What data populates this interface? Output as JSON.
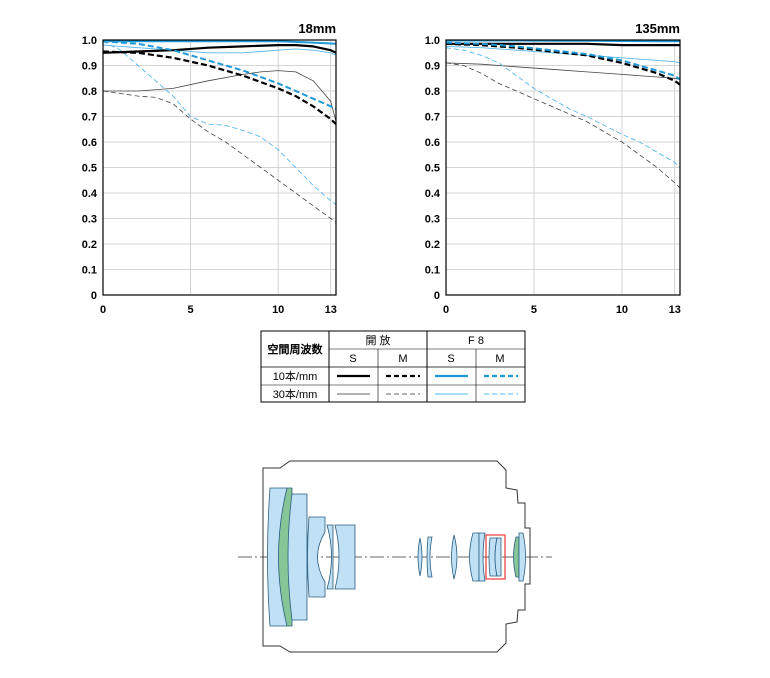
{
  "chart_data": [
    {
      "type": "line",
      "title": "18mm",
      "xlim": [
        0,
        13.3
      ],
      "ylim": [
        0,
        1.0
      ],
      "xticks": [
        "0",
        "5",
        "10",
        "13"
      ],
      "yticks": [
        "0",
        "0.1",
        "0.2",
        "0.3",
        "0.4",
        "0.5",
        "0.6",
        "0.7",
        "0.8",
        "0.9",
        "1.0"
      ],
      "grid": true,
      "series": [
        {
          "name": "開放 S 10本/mm",
          "x": [
            0,
            2,
            4,
            6,
            8,
            10,
            11,
            12,
            13,
            13.3
          ],
          "y": [
            0.95,
            0.955,
            0.96,
            0.97,
            0.975,
            0.98,
            0.98,
            0.975,
            0.96,
            0.95
          ]
        },
        {
          "name": "開放 M 10本/mm",
          "x": [
            0,
            2,
            4,
            6,
            8,
            10,
            11,
            12,
            13,
            13.3
          ],
          "y": [
            0.955,
            0.95,
            0.93,
            0.9,
            0.86,
            0.81,
            0.78,
            0.74,
            0.69,
            0.67
          ]
        },
        {
          "name": "F8 S 10本/mm",
          "x": [
            0,
            2,
            4,
            6,
            8,
            10,
            12,
            13.3
          ],
          "y": [
            0.995,
            0.995,
            0.995,
            0.995,
            0.995,
            0.995,
            0.99,
            0.985
          ]
        },
        {
          "name": "F8 M 10本/mm",
          "x": [
            0,
            2,
            4,
            6,
            8,
            10,
            11,
            12,
            13,
            13.3
          ],
          "y": [
            0.995,
            0.985,
            0.96,
            0.92,
            0.88,
            0.83,
            0.8,
            0.77,
            0.74,
            0.73
          ]
        },
        {
          "name": "開放 S 30本/mm",
          "x": [
            0,
            2,
            4,
            6,
            8,
            9,
            10,
            11,
            12,
            13,
            13.3
          ],
          "y": [
            0.8,
            0.8,
            0.81,
            0.84,
            0.865,
            0.875,
            0.88,
            0.875,
            0.84,
            0.76,
            0.68
          ]
        },
        {
          "name": "開放 M 30本/mm",
          "x": [
            0,
            1,
            2,
            3,
            4,
            5,
            6,
            7,
            8,
            9,
            10,
            11,
            12,
            13,
            13.3
          ],
          "y": [
            0.8,
            0.79,
            0.78,
            0.775,
            0.75,
            0.69,
            0.64,
            0.6,
            0.55,
            0.5,
            0.45,
            0.4,
            0.35,
            0.3,
            0.285
          ]
        },
        {
          "name": "F8 S 30本/mm",
          "x": [
            0,
            2,
            4,
            6,
            8,
            10,
            11,
            12,
            13,
            13.3
          ],
          "y": [
            0.98,
            0.97,
            0.96,
            0.95,
            0.95,
            0.96,
            0.965,
            0.96,
            0.95,
            0.94
          ]
        },
        {
          "name": "F8 M 30本/mm",
          "x": [
            0,
            1,
            2,
            3,
            4,
            5,
            6,
            7,
            8,
            9,
            10,
            11,
            12,
            13,
            13.3
          ],
          "y": [
            0.995,
            0.96,
            0.9,
            0.84,
            0.78,
            0.7,
            0.67,
            0.665,
            0.645,
            0.62,
            0.57,
            0.5,
            0.43,
            0.37,
            0.355
          ]
        }
      ]
    },
    {
      "type": "line",
      "title": "135mm",
      "xlim": [
        0,
        13.3
      ],
      "ylim": [
        0,
        1.0
      ],
      "xticks": [
        "0",
        "5",
        "10",
        "13"
      ],
      "yticks": [
        "0",
        "0.1",
        "0.2",
        "0.3",
        "0.4",
        "0.5",
        "0.6",
        "0.7",
        "0.8",
        "0.9",
        "1.0"
      ],
      "grid": true,
      "series": [
        {
          "name": "開放 S 10本/mm",
          "x": [
            0,
            2,
            4,
            6,
            8,
            10,
            12,
            13.3
          ],
          "y": [
            0.985,
            0.985,
            0.985,
            0.985,
            0.985,
            0.98,
            0.98,
            0.98
          ]
        },
        {
          "name": "開放 M 10本/mm",
          "x": [
            0,
            2,
            4,
            6,
            8,
            10,
            11,
            12,
            13,
            13.3
          ],
          "y": [
            0.985,
            0.98,
            0.97,
            0.955,
            0.94,
            0.91,
            0.89,
            0.87,
            0.84,
            0.825
          ]
        },
        {
          "name": "F8 S 10本/mm",
          "x": [
            0,
            2,
            4,
            6,
            8,
            10,
            12,
            13.3
          ],
          "y": [
            0.998,
            0.998,
            0.998,
            0.997,
            0.997,
            0.996,
            0.995,
            0.995
          ]
        },
        {
          "name": "F8 M 10本/mm",
          "x": [
            0,
            2,
            4,
            6,
            8,
            10,
            11,
            12,
            13,
            13.3
          ],
          "y": [
            0.99,
            0.985,
            0.975,
            0.96,
            0.945,
            0.92,
            0.9,
            0.88,
            0.86,
            0.845
          ]
        },
        {
          "name": "開放 S 30本/mm",
          "x": [
            0,
            2,
            4,
            6,
            8,
            10,
            12,
            13,
            13.3
          ],
          "y": [
            0.91,
            0.905,
            0.895,
            0.885,
            0.875,
            0.865,
            0.855,
            0.85,
            0.845
          ]
        },
        {
          "name": "開放 M 30本/mm",
          "x": [
            0,
            1,
            2,
            3,
            4,
            5,
            6,
            7,
            8,
            9,
            10,
            11,
            12,
            13,
            13.3
          ],
          "y": [
            0.91,
            0.9,
            0.87,
            0.83,
            0.8,
            0.77,
            0.74,
            0.71,
            0.68,
            0.64,
            0.6,
            0.55,
            0.5,
            0.44,
            0.42
          ]
        },
        {
          "name": "F8 S 30本/mm",
          "x": [
            0,
            2,
            4,
            6,
            8,
            10,
            12,
            13,
            13.3
          ],
          "y": [
            0.975,
            0.97,
            0.96,
            0.95,
            0.94,
            0.93,
            0.92,
            0.915,
            0.91
          ]
        },
        {
          "name": "F8 M 30本/mm",
          "x": [
            0,
            1,
            2,
            3,
            4,
            5,
            6,
            7,
            8,
            9,
            10,
            11,
            12,
            13,
            13.3
          ],
          "y": [
            0.97,
            0.96,
            0.94,
            0.91,
            0.86,
            0.81,
            0.77,
            0.73,
            0.7,
            0.665,
            0.63,
            0.6,
            0.56,
            0.52,
            0.5
          ]
        }
      ]
    }
  ],
  "legend": {
    "row_header": "空間周波数",
    "group_open": "開 放",
    "group_f8": "F 8",
    "sub_s": "S",
    "sub_m": "M",
    "rows": [
      "10本/mm",
      "30本/mm"
    ]
  },
  "colors": {
    "open": "#000000",
    "f8": "#1f9ad6",
    "f8_light": "#55b8ec",
    "grid": "#c8c8c8",
    "lens_blue": "#bfe0f5",
    "lens_green": "#86c596",
    "highlight": "#e83c3c"
  },
  "diagram": {
    "type": "lens-construction",
    "highlighted_element": "aspherical-group-box"
  }
}
